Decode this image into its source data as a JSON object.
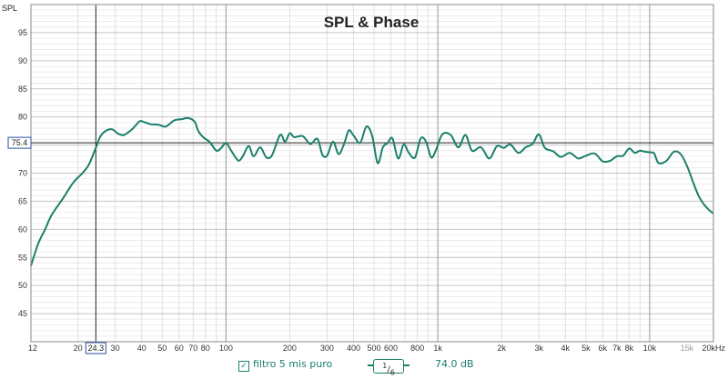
{
  "chart_data": {
    "type": "line",
    "title": "SPL & Phase",
    "ylabel": "SPL",
    "xlabel": "",
    "x_scale": "log",
    "xlim": [
      12,
      20000
    ],
    "ylim": [
      40,
      100
    ],
    "y_ticks": [
      45,
      50,
      55,
      60,
      65,
      70,
      75,
      80,
      85,
      90,
      95
    ],
    "x_ticks": [
      {
        "value": 12,
        "label": "12"
      },
      {
        "value": 20,
        "label": "20"
      },
      {
        "value": 30,
        "label": "30"
      },
      {
        "value": 40,
        "label": "40"
      },
      {
        "value": 50,
        "label": "50"
      },
      {
        "value": 60,
        "label": "60"
      },
      {
        "value": 70,
        "label": "70"
      },
      {
        "value": 80,
        "label": "80"
      },
      {
        "value": 100,
        "label": "100"
      },
      {
        "value": 200,
        "label": "200"
      },
      {
        "value": 300,
        "label": "300"
      },
      {
        "value": 400,
        "label": "400"
      },
      {
        "value": 500,
        "label": "500"
      },
      {
        "value": 600,
        "label": "600"
      },
      {
        "value": 800,
        "label": "800"
      },
      {
        "value": 1000,
        "label": "1k"
      },
      {
        "value": 2000,
        "label": "2k"
      },
      {
        "value": 3000,
        "label": "3k"
      },
      {
        "value": 4000,
        "label": "4k"
      },
      {
        "value": 5000,
        "label": "5k"
      },
      {
        "value": 6000,
        "label": "6k"
      },
      {
        "value": 7000,
        "label": "7k"
      },
      {
        "value": 8000,
        "label": "8k"
      },
      {
        "value": 10000,
        "label": "10k"
      },
      {
        "value": 15000,
        "label": "15k"
      },
      {
        "value": 20000,
        "label": "20kHz"
      }
    ],
    "cursor": {
      "x": 24.3,
      "x_label": "24.3",
      "y": 75.4,
      "y_label": "75.4"
    },
    "grid": true,
    "series": [
      {
        "name": "filtro 5 mis puro",
        "color": "#1a7f6a",
        "x": [
          12,
          13,
          14,
          15,
          17,
          19,
          21,
          22.5,
          24,
          25.5,
          27,
          29,
          31,
          33,
          36,
          39,
          41,
          44,
          48,
          52,
          57,
          62,
          66,
          71,
          74,
          78,
          84,
          90,
          95,
          100,
          105,
          110,
          115,
          120,
          128,
          135,
          145,
          155,
          165,
          180,
          190,
          200,
          210,
          230,
          250,
          270,
          285,
          300,
          320,
          340,
          360,
          380,
          400,
          430,
          460,
          490,
          520,
          550,
          580,
          610,
          650,
          690,
          730,
          780,
          830,
          880,
          930,
          980,
          1050,
          1150,
          1250,
          1350,
          1450,
          1600,
          1750,
          1900,
          2050,
          2200,
          2400,
          2600,
          2800,
          3000,
          3200,
          3500,
          3800,
          4200,
          4600,
          5000,
          5500,
          6000,
          6500,
          7000,
          7500,
          8000,
          8500,
          9000,
          9500,
          10000,
          10500,
          11000,
          12000,
          13000,
          14000,
          15000,
          16000,
          17000,
          18000,
          19000,
          20000
        ],
        "y": [
          53.5,
          57.5,
          60,
          62.5,
          65.5,
          68.3,
          70,
          71.5,
          74,
          76.5,
          77.5,
          77.8,
          77,
          76.8,
          77.8,
          79.2,
          79.1,
          78.7,
          78.6,
          78.3,
          79.4,
          79.6,
          79.8,
          79.2,
          77.5,
          76.4,
          75.5,
          74,
          74.5,
          75.4,
          74.2,
          73,
          72.2,
          73,
          74.8,
          73,
          74.6,
          72.8,
          73.2,
          76.8,
          75.6,
          77.1,
          76.4,
          76.6,
          75.2,
          76.1,
          73.3,
          73.1,
          75.6,
          73.4,
          75.1,
          77.6,
          76.7,
          75.4,
          78.3,
          76.6,
          71.8,
          74.6,
          75.4,
          76.2,
          72.6,
          75.1,
          73.6,
          72.8,
          76.2,
          75.6,
          72.8,
          74.1,
          76.9,
          76.8,
          74.6,
          76.8,
          74,
          74.6,
          72.6,
          74.8,
          74.5,
          75.1,
          73.6,
          74.6,
          75.2,
          76.9,
          74.5,
          73.9,
          72.9,
          73.6,
          72.6,
          73.1,
          73.5,
          72.1,
          72.2,
          73,
          73.1,
          74.4,
          73.6,
          74,
          73.8,
          73.7,
          73.5,
          71.8,
          72.2,
          73.8,
          73.4,
          71.3,
          68.5,
          66,
          64.5,
          63.5,
          62.8
        ]
      }
    ]
  },
  "legend": {
    "series_label": "filtro 5 mis puro",
    "checkbox": "✓",
    "smoothing_numerator": "1",
    "smoothing_denominator": "6",
    "level": "74.0 dB"
  }
}
